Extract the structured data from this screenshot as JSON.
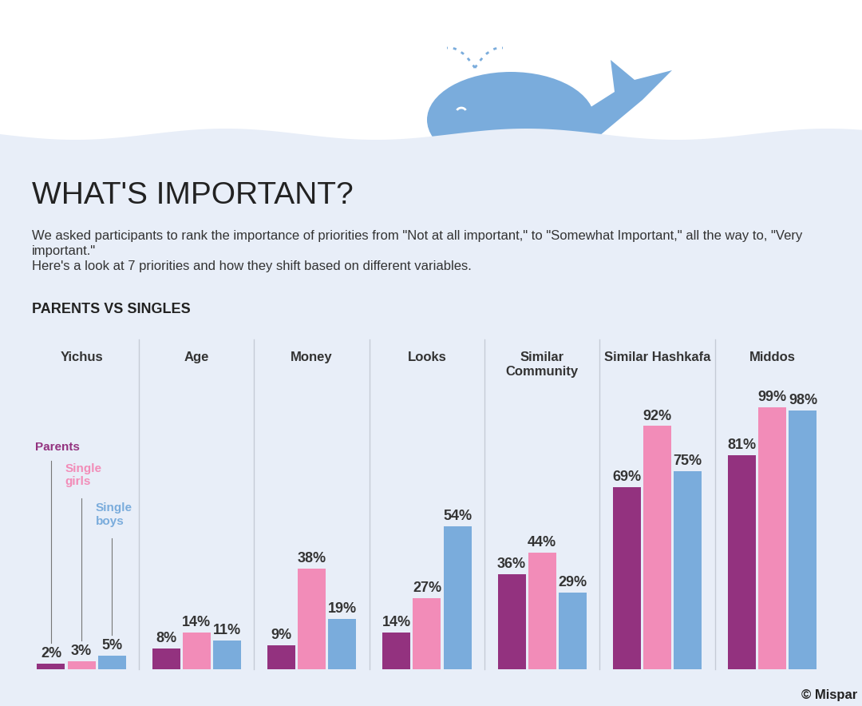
{
  "chart_data": {
    "type": "bar",
    "title": "WHAT'S IMPORTANT?",
    "subtitle": "We asked participants to rank the importance of priorities from \"Not at all important,\" to \"Somewhat Important,\" all the way to, \"Very important.\"\nHere's a look at 7 priorities and how they shift based on different variables.",
    "annotations": [
      "PARENTS VS SINGLES",
      "© Mispar"
    ],
    "categories": [
      "Yichus",
      "Age",
      "Money",
      "Looks",
      "Similar Community",
      "Similar Hashkafa",
      "Middos"
    ],
    "series": [
      {
        "name": "Parents",
        "color": "#93327f",
        "values": [
          2,
          8,
          9,
          14,
          36,
          69,
          81
        ],
        "value_labels": [
          "2%",
          "8%",
          "9%",
          "14%",
          "36%",
          "69%",
          "81%"
        ]
      },
      {
        "name": "Single girls",
        "color": "#f28cb8",
        "values": [
          3,
          14,
          38,
          27,
          44,
          92,
          99
        ],
        "value_labels": [
          "3%",
          "14%",
          "38%",
          "27%",
          "44%",
          "92%",
          "99%"
        ]
      },
      {
        "name": "Single boys",
        "color": "#7aacdc",
        "values": [
          5,
          11,
          19,
          54,
          29,
          75,
          98
        ],
        "value_labels": [
          "5%",
          "11%",
          "19%",
          "54%",
          "29%",
          "75%",
          "98%"
        ]
      }
    ],
    "ylim": [
      0,
      100
    ],
    "data_labels": true,
    "tick_labels": "x"
  }
}
